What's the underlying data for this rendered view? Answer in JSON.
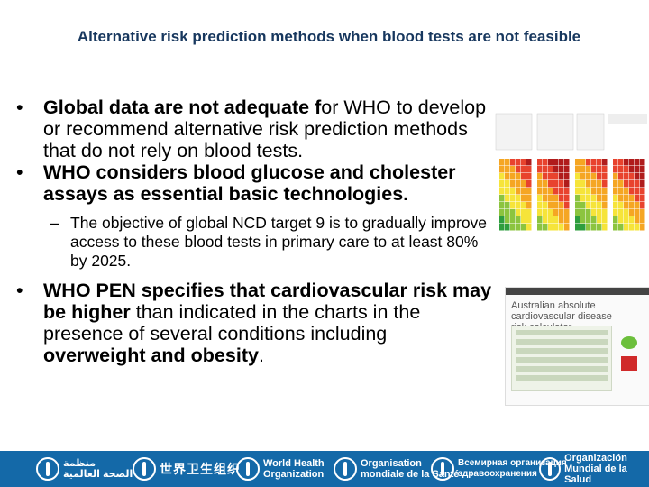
{
  "slide": {
    "title": "Alternative risk prediction methods when blood tests are not feasible",
    "bullets": [
      {
        "bold": "Global data are not adequate f",
        "rest": "or WHO to develop or recommend  alternative risk prediction methods that do not rely on blood tests."
      },
      {
        "bold": "WHO considers blood glucose  and cholester assays as essential basic technologies.",
        "rest": ""
      }
    ],
    "sub_bullet": "The objective of global NCD target 9 is to gradually improve access to these blood tests in primary care  to at least  80%  by 2025.",
    "bullet3": {
      "bold1": "WHO PEN specifies that cardiovascular risk may be higher",
      "mid": " than indicated in the charts in the presence of several conditions including ",
      "bold2": "overweight and obesity",
      "end": "."
    }
  },
  "calculator": {
    "title": "Australian absolute cardiovascular disease risk calculator"
  },
  "footer": {
    "logos": [
      {
        "text": "منظمة\nالصحة العالمية"
      },
      {
        "text": "世界卫生组织"
      },
      {
        "text": "World Health\nOrganization"
      },
      {
        "text": "Organisation\nmondiale de la Santé"
      },
      {
        "text": "Всемирная организация\nздравоохранения"
      },
      {
        "text": "Organización\nMundial de la Salud"
      }
    ]
  },
  "colors": {
    "title": "#17375e",
    "footer_bg": "#1469a8"
  }
}
